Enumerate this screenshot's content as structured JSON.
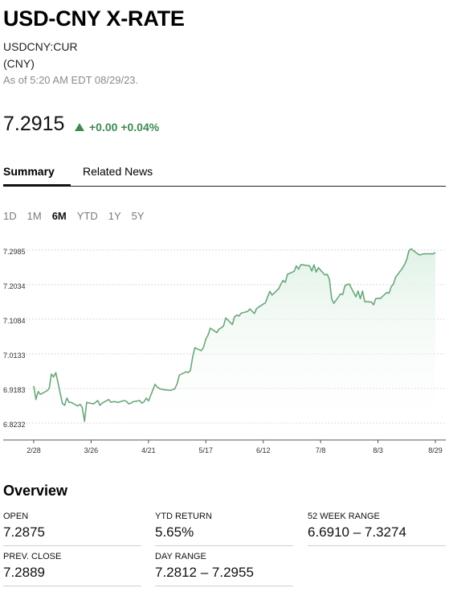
{
  "header": {
    "title": "USD-CNY X-RATE",
    "ticker": "USDCNY:CUR",
    "currency": "(CNY)",
    "as_of": "As of 5:20 AM EDT 08/29/23."
  },
  "quote": {
    "price": "7.2915",
    "change": "+0.00 +0.04%",
    "direction": "up",
    "up_color": "#3d8a53"
  },
  "tabs": [
    {
      "label": "Summary",
      "active": true
    },
    {
      "label": "Related News",
      "active": false
    }
  ],
  "ranges": [
    {
      "label": "1D",
      "active": false
    },
    {
      "label": "1M",
      "active": false
    },
    {
      "label": "6M",
      "active": true
    },
    {
      "label": "YTD",
      "active": false
    },
    {
      "label": "1Y",
      "active": false
    },
    {
      "label": "5Y",
      "active": false
    }
  ],
  "chart_data": {
    "type": "area",
    "y_ticks": [
      "7.2985",
      "7.2034",
      "7.1084",
      "7.0133",
      "6.9183",
      "6.8232"
    ],
    "x_ticks": [
      "2/28",
      "3/26",
      "4/21",
      "5/17",
      "6/12",
      "7/8",
      "8/3",
      "8/29"
    ],
    "ylim": [
      6.7768,
      7.3225
    ],
    "line_color": "#6aa77a",
    "fill_color": "#e8f5ec",
    "grid": true,
    "series": [
      {
        "dates": [
          "2023-02-28",
          "2023-03-01",
          "2023-03-02",
          "2023-03-03",
          "2023-03-06",
          "2023-03-07",
          "2023-03-08",
          "2023-03-09",
          "2023-03-10",
          "2023-03-13",
          "2023-03-14",
          "2023-03-15",
          "2023-03-16",
          "2023-03-17",
          "2023-03-20",
          "2023-03-21",
          "2023-03-22",
          "2023-03-23",
          "2023-03-24",
          "2023-03-27",
          "2023-03-28",
          "2023-03-29",
          "2023-03-30",
          "2023-03-31",
          "2023-04-03",
          "2023-04-04",
          "2023-04-05",
          "2023-04-06",
          "2023-04-07",
          "2023-04-10",
          "2023-04-11",
          "2023-04-12",
          "2023-04-13",
          "2023-04-14",
          "2023-04-17",
          "2023-04-18",
          "2023-04-19",
          "2023-04-20",
          "2023-04-21",
          "2023-04-24",
          "2023-04-25",
          "2023-04-26",
          "2023-04-27",
          "2023-04-28",
          "2023-05-01",
          "2023-05-02",
          "2023-05-03",
          "2023-05-04",
          "2023-05-05",
          "2023-05-08",
          "2023-05-09",
          "2023-05-10",
          "2023-05-11",
          "2023-05-12",
          "2023-05-15",
          "2023-05-16",
          "2023-05-17",
          "2023-05-18",
          "2023-05-19",
          "2023-05-22",
          "2023-05-23",
          "2023-05-24",
          "2023-05-25",
          "2023-05-26",
          "2023-05-29",
          "2023-05-30",
          "2023-05-31",
          "2023-06-01",
          "2023-06-02",
          "2023-06-05",
          "2023-06-06",
          "2023-06-07",
          "2023-06-08",
          "2023-06-09",
          "2023-06-12",
          "2023-06-13",
          "2023-06-14",
          "2023-06-15",
          "2023-06-16",
          "2023-06-19",
          "2023-06-20",
          "2023-06-21",
          "2023-06-22",
          "2023-06-23",
          "2023-06-26",
          "2023-06-27",
          "2023-06-28",
          "2023-06-29",
          "2023-06-30",
          "2023-07-03",
          "2023-07-04",
          "2023-07-05",
          "2023-07-06",
          "2023-07-07",
          "2023-07-10",
          "2023-07-11",
          "2023-07-12",
          "2023-07-13",
          "2023-07-14",
          "2023-07-17",
          "2023-07-18",
          "2023-07-19",
          "2023-07-20",
          "2023-07-21",
          "2023-07-24",
          "2023-07-25",
          "2023-07-26",
          "2023-07-27",
          "2023-07-28",
          "2023-07-31",
          "2023-08-01",
          "2023-08-02",
          "2023-08-03",
          "2023-08-04",
          "2023-08-07",
          "2023-08-08",
          "2023-08-09",
          "2023-08-10",
          "2023-08-11",
          "2023-08-14",
          "2023-08-15",
          "2023-08-16",
          "2023-08-17",
          "2023-08-18",
          "2023-08-21",
          "2023-08-22",
          "2023-08-23",
          "2023-08-24",
          "2023-08-25",
          "2023-08-28",
          "2023-08-29"
        ],
        "values": [
          6.925,
          6.888,
          6.91,
          6.902,
          6.912,
          6.918,
          6.958,
          6.95,
          6.962,
          6.877,
          6.872,
          6.892,
          6.88,
          6.88,
          6.87,
          6.875,
          6.866,
          6.828,
          6.88,
          6.876,
          6.88,
          6.885,
          6.872,
          6.878,
          6.888,
          6.88,
          6.882,
          6.882,
          6.88,
          6.885,
          6.883,
          6.876,
          6.878,
          6.882,
          6.885,
          6.878,
          6.882,
          6.892,
          6.884,
          6.93,
          6.922,
          6.918,
          6.916,
          6.915,
          6.913,
          6.915,
          6.918,
          6.932,
          6.955,
          6.964,
          6.962,
          6.968,
          7.004,
          7.03,
          7.022,
          7.032,
          7.054,
          7.065,
          7.084,
          7.072,
          7.082,
          7.085,
          7.09,
          7.112,
          7.094,
          7.115,
          7.12,
          7.117,
          7.125,
          7.13,
          7.137,
          7.13,
          7.124,
          7.138,
          7.15,
          7.154,
          7.17,
          7.185,
          7.175,
          7.192,
          7.205,
          7.215,
          7.21,
          7.232,
          7.24,
          7.255,
          7.246,
          7.258,
          7.258,
          7.255,
          7.241,
          7.258,
          7.238,
          7.25,
          7.23,
          7.232,
          7.218,
          7.165,
          7.152,
          7.178,
          7.176,
          7.2,
          7.204,
          7.205,
          7.17,
          7.186,
          7.165,
          7.186,
          7.157,
          7.156,
          7.148,
          7.165,
          7.166,
          7.165,
          7.182,
          7.18,
          7.198,
          7.205,
          7.224,
          7.248,
          7.258,
          7.272,
          7.296,
          7.302,
          7.288,
          7.285,
          7.287,
          7.288,
          7.288,
          7.288,
          7.2915
        ]
      }
    ]
  },
  "overview": {
    "title": "Overview",
    "stats": [
      {
        "label": "OPEN",
        "value": "7.2875"
      },
      {
        "label": "YTD RETURN",
        "value": "5.65%"
      },
      {
        "label": "52 WEEK RANGE",
        "value": "6.6910 – 7.3274"
      },
      {
        "label": "PREV. CLOSE",
        "value": "7.2889"
      },
      {
        "label": "DAY RANGE",
        "value": "7.2812 – 7.2955"
      }
    ]
  }
}
